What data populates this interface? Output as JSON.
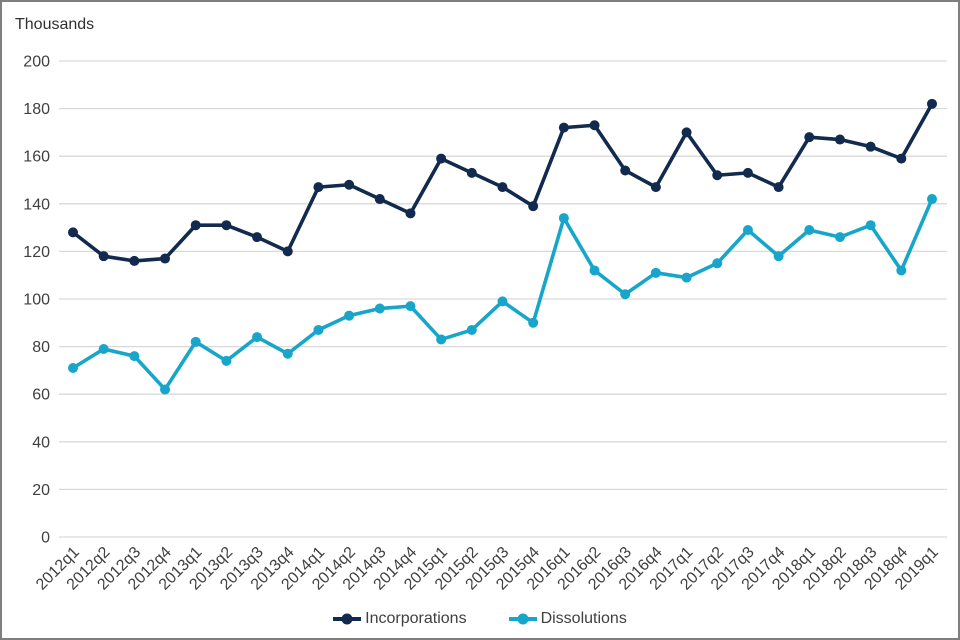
{
  "chart_data": {
    "type": "line",
    "title": "",
    "ylabel": "Thousands",
    "xlabel": "",
    "ylim": [
      0,
      200
    ],
    "ytick_step": 20,
    "grid": true,
    "legend_position": "bottom",
    "categories": [
      "2012q1",
      "2012q2",
      "2012q3",
      "2012q4",
      "2013q1",
      "2013q2",
      "2013q3",
      "2013q4",
      "2014q1",
      "2014q2",
      "2014q3",
      "2014q4",
      "2015q1",
      "2015q2",
      "2015q3",
      "2015q4",
      "2016q1",
      "2016q2",
      "2016q3",
      "2016q4",
      "2017q1",
      "2017q2",
      "2017q3",
      "2017q4",
      "2018q1",
      "2018q2",
      "2018q3",
      "2018q4",
      "2019q1"
    ],
    "series": [
      {
        "name": "Incorporations",
        "color": "#112a4d",
        "values": [
          128,
          118,
          116,
          117,
          131,
          131,
          126,
          120,
          147,
          148,
          142,
          136,
          159,
          153,
          147,
          139,
          172,
          173,
          154,
          147,
          170,
          152,
          153,
          147,
          168,
          167,
          164,
          159,
          182
        ]
      },
      {
        "name": "Dissolutions",
        "color": "#17a6ca",
        "values": [
          71,
          79,
          76,
          62,
          82,
          74,
          84,
          77,
          87,
          93,
          96,
          97,
          83,
          87,
          99,
          90,
          134,
          112,
          102,
          111,
          109,
          115,
          129,
          118,
          129,
          126,
          131,
          112,
          142
        ]
      }
    ],
    "colors": {
      "grid": "#d9d9d9",
      "tick_text": "#404040",
      "frame_border": "#7f7f7f",
      "background": "#ffffff"
    }
  }
}
